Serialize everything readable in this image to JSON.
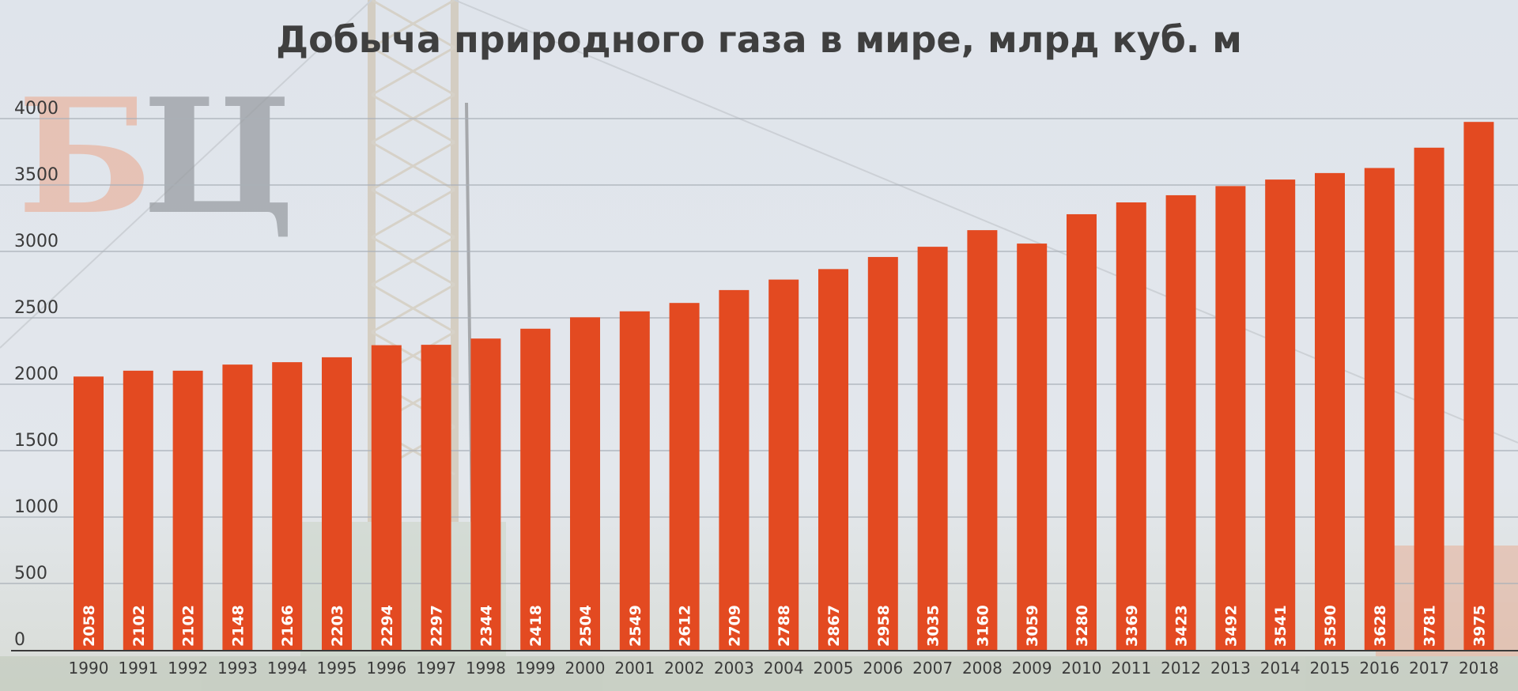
{
  "chart_data": {
    "type": "bar",
    "title": "Добыча природного газа в мире, млрд куб. м",
    "categories": [
      "1990",
      "1991",
      "1992",
      "1993",
      "1994",
      "1995",
      "1996",
      "1997",
      "1998",
      "1999",
      "2000",
      "2001",
      "2002",
      "2003",
      "2004",
      "2005",
      "2006",
      "2007",
      "2008",
      "2009",
      "2010",
      "2011",
      "2012",
      "2013",
      "2014",
      "2015",
      "2016",
      "2017",
      "2018"
    ],
    "values": [
      2058,
      2102,
      2102,
      2148,
      2166,
      2203,
      2294,
      2297,
      2344,
      2418,
      2504,
      2549,
      2612,
      2709,
      2788,
      2867,
      2958,
      3035,
      3160,
      3059,
      3280,
      3369,
      3423,
      3492,
      3541,
      3590,
      3628,
      3781,
      3975
    ],
    "yticks": [
      0,
      500,
      1000,
      1500,
      2000,
      2500,
      3000,
      3500,
      4000
    ],
    "ylim": [
      0,
      4000
    ],
    "xlabel": "",
    "ylabel": "",
    "grid": true,
    "data_labels": "inside-bar-bottom-vertical",
    "colors": {
      "bar": "#e34a21",
      "grid": "#a9b0b8",
      "axis": "#3a3a3a",
      "text": "#3a3a3a",
      "title": "#3f3f3f",
      "bar_label": "#ffffff"
    }
  },
  "logo": {
    "text": "БЦ",
    "colors": [
      "#e8b7a4",
      "#9a9ea3"
    ]
  }
}
